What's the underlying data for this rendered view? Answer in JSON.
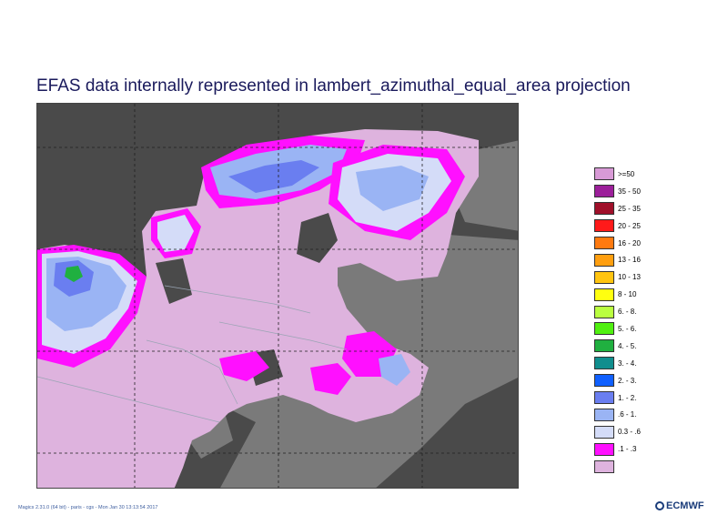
{
  "title": "EFAS data internally represented in lambert_azimuthal_equal_area projection",
  "legend": {
    "items": [
      {
        "label": ">=50",
        "color": "#d89ad6"
      },
      {
        "label": "35 - 50",
        "color": "#9c1f9a"
      },
      {
        "label": "25 - 35",
        "color": "#a0102a"
      },
      {
        "label": "20 - 25",
        "color": "#ff1a1a"
      },
      {
        "label": "16 - 20",
        "color": "#ff7a10"
      },
      {
        "label": "13 - 16",
        "color": "#ff9f10"
      },
      {
        "label": "10 - 13",
        "color": "#ffc410"
      },
      {
        "label": "8 - 10",
        "color": "#ffff10"
      },
      {
        "label": "6. - 8.",
        "color": "#baff40"
      },
      {
        "label": "5. - 6.",
        "color": "#50f010"
      },
      {
        "label": "4. - 5.",
        "color": "#20b040"
      },
      {
        "label": "3. - 4.",
        "color": "#108e8e"
      },
      {
        "label": "2. - 3.",
        "color": "#1060ff"
      },
      {
        "label": "1. - 2.",
        "color": "#6a7ef0"
      },
      {
        "label": ".6 - 1.",
        "color": "#9ab4f4"
      },
      {
        "label": "0.3 - .6",
        "color": "#d4dcf8"
      },
      {
        "label": ".1 - .3",
        "color": "#ff10ff"
      },
      {
        "label": "",
        "color": "#deb3de"
      }
    ]
  },
  "map": {
    "colors": {
      "sea": "#4a4a4a",
      "land": "#7a7a7a",
      "domain": "#deb3de",
      "border": "#9aa4b4"
    }
  },
  "footer": {
    "text": "Magics 2.31.0 (64 bit) - paris - cgs - Mon Jan 30 13:13:54 2017"
  },
  "logo": {
    "text": "ECMWF"
  }
}
